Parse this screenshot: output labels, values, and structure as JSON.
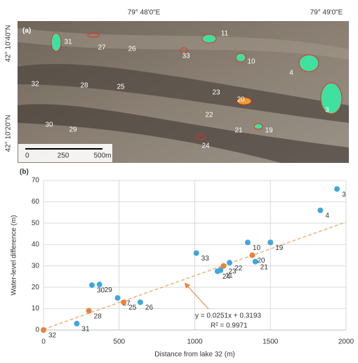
{
  "map_panel": {
    "panel_label": "(a)",
    "lon_labels": [
      "79° 48'0\"E",
      "79° 49'0\"E"
    ],
    "lat_labels": [
      "42° 10'40\"N",
      "42° 10'20\"N"
    ],
    "scale_labels": [
      "0",
      "250",
      "500m"
    ],
    "lake_labels": [
      "31",
      "27",
      "26",
      "33",
      "11",
      "10",
      "4",
      "3",
      "32",
      "28",
      "25",
      "23",
      "20",
      "22",
      "21",
      "19",
      "30",
      "29",
      "24"
    ]
  },
  "chart_data": {
    "type": "scatter",
    "panel_label": "(b)",
    "x_label": "Distance from lake 32 (m)",
    "y_label": "Water-level difference (m)",
    "xlim": [
      0,
      2000
    ],
    "xticks": [
      0,
      500,
      1000,
      1500,
      2000
    ],
    "ylim": [
      0,
      70
    ],
    "yticks": [
      0,
      10,
      20,
      30,
      40,
      50,
      60,
      70
    ],
    "grid": true,
    "series": [
      {
        "color": "#3ea8e0",
        "x": [
          1940,
          1830,
          1350,
          1500,
          1400,
          1230,
          1170,
          1150,
          1010,
          490,
          640,
          320,
          370,
          220
        ],
        "values": [
          66,
          56,
          41,
          41,
          32,
          31.5,
          28,
          27.5,
          36,
          15,
          13,
          21,
          21.3,
          3
        ],
        "point_labels": [
          "3",
          "4",
          "10",
          "19",
          "21",
          "22",
          "11",
          "24",
          "33",
          "27",
          "26",
          "30",
          "29",
          "31"
        ]
      },
      {
        "color": "#e8823a",
        "x": [
          0,
          300,
          530,
          1190,
          1380
        ],
        "values": [
          0,
          9,
          13,
          30,
          35
        ],
        "point_labels": [
          "32",
          "28",
          "25",
          "23",
          "20"
        ]
      }
    ],
    "trendline": {
      "slope": 0.0251,
      "intercept": 0.3193,
      "color": "#f0b07a",
      "equation": "y = 0.0251x + 0.3193",
      "r2_label": "R² = 0.9971"
    }
  }
}
